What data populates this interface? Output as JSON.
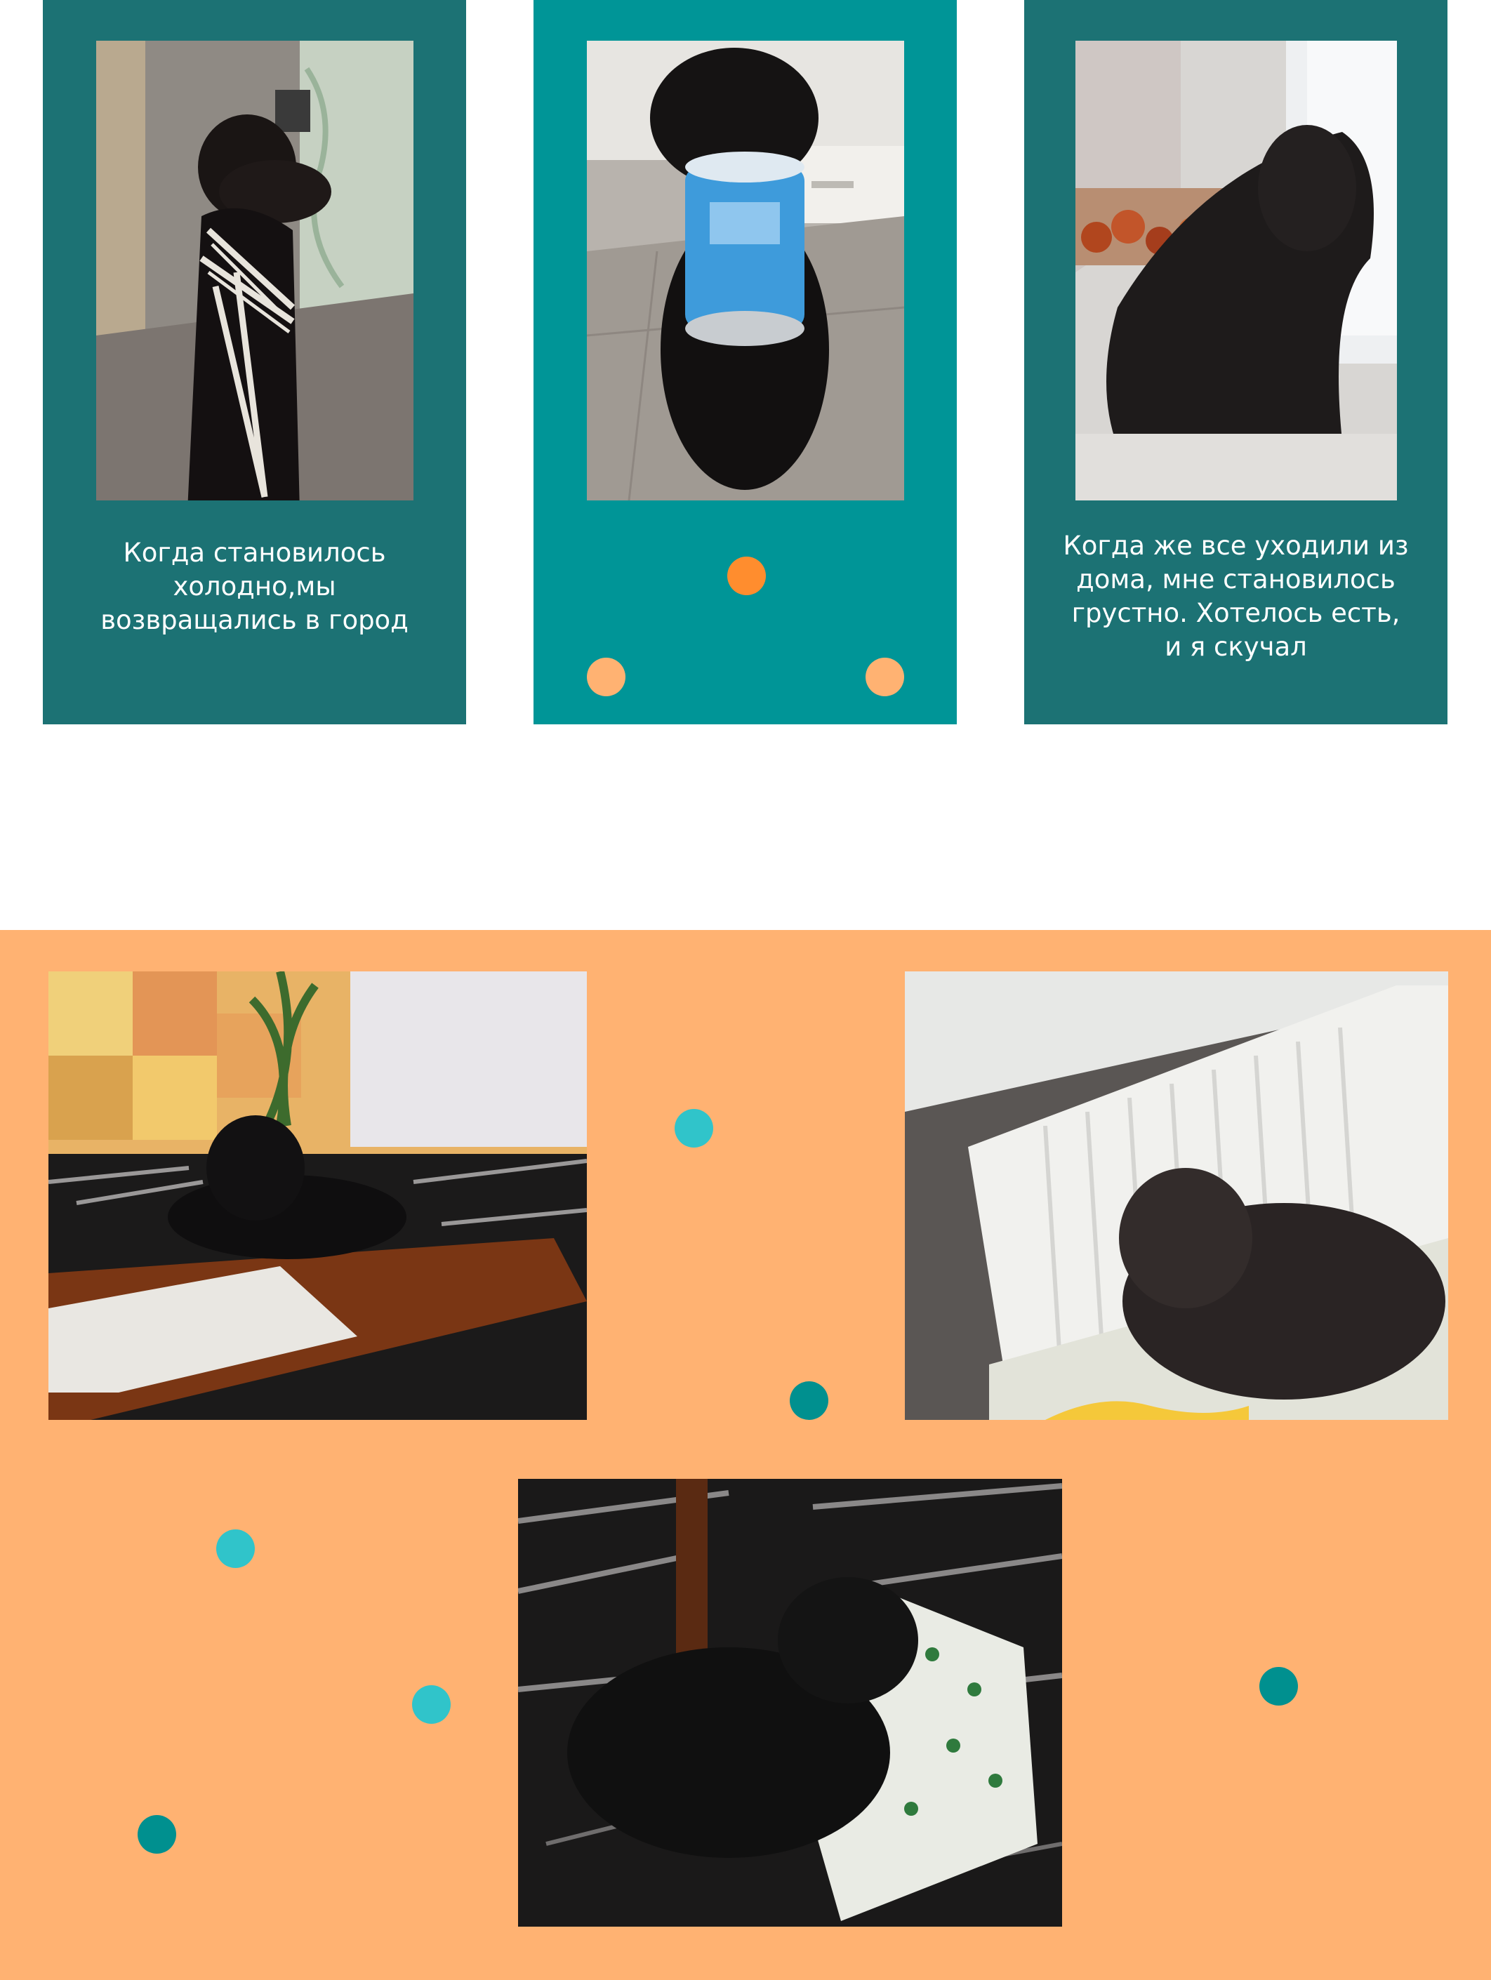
{
  "colors": {
    "page_background": "#ffffff",
    "card_dark_teal": "#1c7274",
    "card_teal": "#009597",
    "gallery_orange": "#ffb272",
    "dot_orange": "#ff8d2e",
    "dot_light_orange": "#ffb272",
    "dot_cyan": "#30c4ca",
    "dot_dark_teal": "#00908f"
  },
  "story_cards": [
    {
      "photo": "dog-in-striped-scarf-photo",
      "caption": "Когда становилось\nхолодно,мы\nвозвращались в город"
    },
    {
      "photo": "dog-holding-yogurt-cup-photo",
      "caption": ""
    },
    {
      "photo": "dog-on-windowsill-photo",
      "caption": "Когда же все уходили из\nдома, мне становилось\nгрустно. Хотелось есть,\nи я скучал"
    }
  ],
  "gallery": {
    "photos": [
      "dog-on-wooden-table-photo",
      "dog-by-radiator-photo",
      "dog-sleeping-on-pillow-photo"
    ]
  }
}
